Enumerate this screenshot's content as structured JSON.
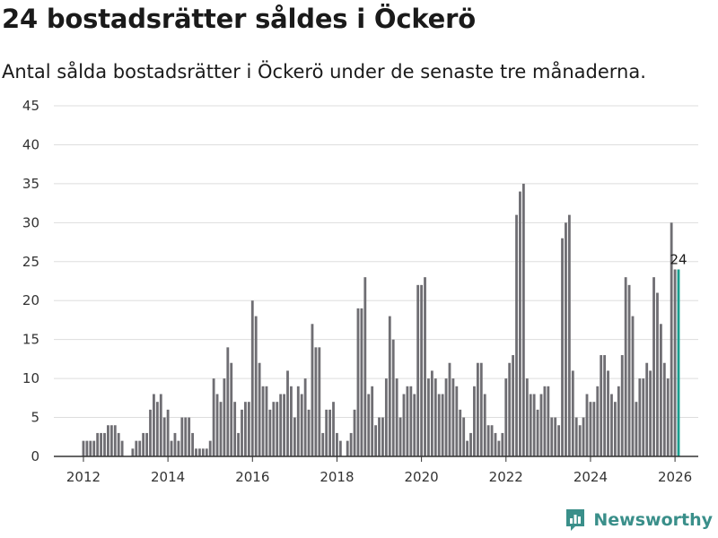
{
  "title": "24 bostadsrätter såldes i Öckerö",
  "subtitle": "Antal sålda bostadsrätter i Öckerö under de senaste tre månaderna.",
  "brand": {
    "name": "Newsworthy",
    "icon": "newsworthy-logo-icon"
  },
  "colors": {
    "bar": "#6f6e73",
    "highlight": "#1a9e8f",
    "grid": "#dddddd",
    "axis": "#333333",
    "brand": "#3a8f8a"
  },
  "chart_data": {
    "type": "bar",
    "title": "",
    "xlabel": "",
    "ylabel": "",
    "ylim": [
      0,
      45
    ],
    "yticks": [
      0,
      5,
      10,
      15,
      20,
      25,
      30,
      35,
      40,
      45
    ],
    "xlim": [
      2011.3,
      2026.55
    ],
    "xticks": [
      2012,
      2014,
      2016,
      2018,
      2020,
      2022,
      2024,
      2026
    ],
    "grid": true,
    "x_start": 2012.0,
    "x_step": 0.08333,
    "values": [
      2,
      2,
      2,
      2,
      3,
      3,
      3,
      4,
      4,
      4,
      3,
      2,
      0,
      0,
      1,
      2,
      2,
      3,
      3,
      6,
      8,
      7,
      8,
      5,
      6,
      2,
      3,
      2,
      5,
      5,
      5,
      3,
      1,
      1,
      1,
      1,
      2,
      10,
      8,
      7,
      10,
      14,
      12,
      7,
      3,
      6,
      7,
      7,
      20,
      18,
      12,
      9,
      9,
      6,
      7,
      7,
      8,
      8,
      11,
      9,
      5,
      9,
      8,
      10,
      6,
      17,
      14,
      14,
      3,
      6,
      6,
      7,
      3,
      2,
      0,
      2,
      3,
      6,
      19,
      19,
      23,
      8,
      9,
      4,
      5,
      5,
      10,
      18,
      15,
      10,
      5,
      8,
      9,
      9,
      8,
      22,
      22,
      23,
      10,
      11,
      10,
      8,
      8,
      10,
      12,
      10,
      9,
      6,
      5,
      2,
      3,
      9,
      12,
      12,
      8,
      4,
      4,
      3,
      2,
      3,
      10,
      12,
      13,
      31,
      34,
      35,
      10,
      8,
      8,
      6,
      8,
      9,
      9,
      5,
      5,
      4,
      28,
      30,
      31,
      11,
      5,
      4,
      5,
      8,
      7,
      7,
      9,
      13,
      13,
      11,
      8,
      7,
      9,
      13,
      23,
      22,
      18,
      7,
      10,
      10,
      12,
      11,
      23,
      21,
      17,
      12,
      10,
      30,
      24,
      24
    ],
    "highlight_last": true,
    "annotations": [
      {
        "text": "24",
        "target": "last"
      }
    ]
  }
}
